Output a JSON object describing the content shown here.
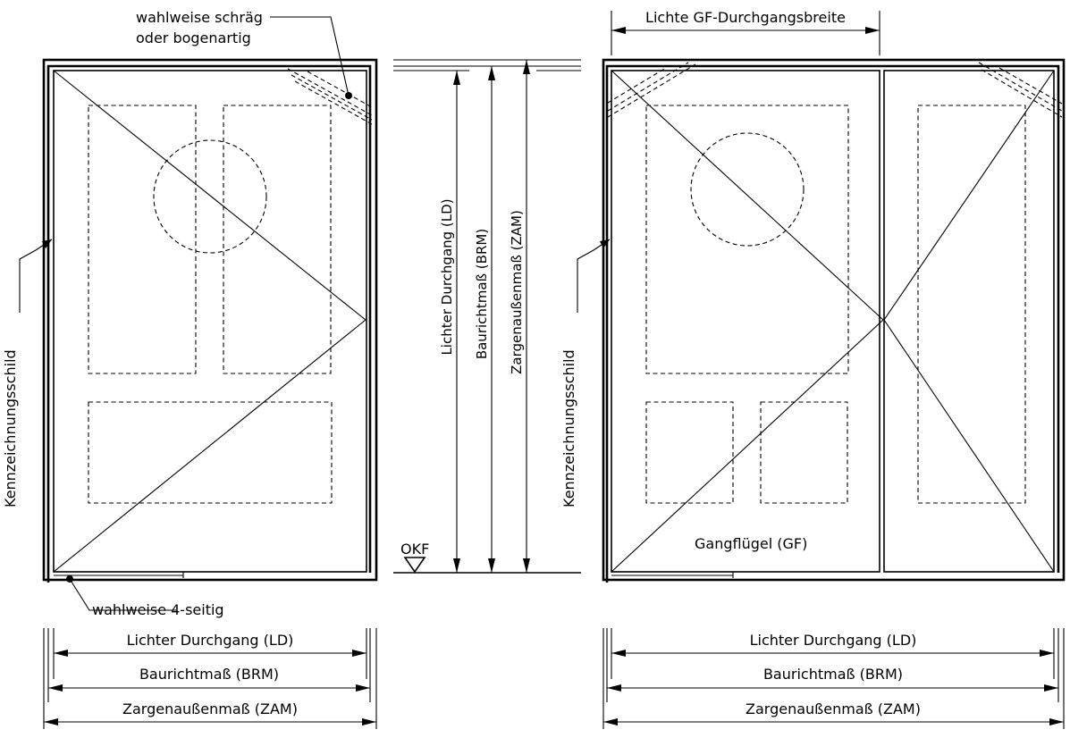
{
  "labels": {
    "left_corner_note_line1": "wahlweise schräg",
    "left_corner_note_line2": "oder bogenartig",
    "left_bottom_note": "wahlweise 4-seitig",
    "marking_plate": "Kennzeichnungsschild",
    "floor_level": "OKF",
    "clear_passage": "Lichter Durchgang (LD)",
    "nominal_size": "Baurichtmaß (BRM)",
    "frame_outer": "Zargenaußenmaß (ZAM)",
    "clear_passage_leaf": "Lichte GF-Durchgangsbreite",
    "active_leaf": "Gangflügel (GF)"
  }
}
